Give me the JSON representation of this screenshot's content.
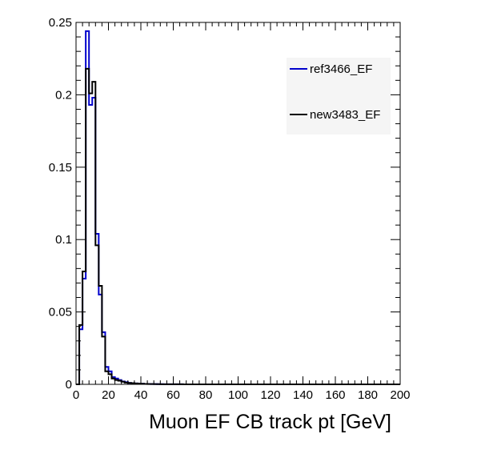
{
  "chart_data": {
    "type": "line",
    "title": "",
    "xlabel": "Muon EF CB track pt [GeV]",
    "ylabel": "",
    "xlim": [
      0,
      200
    ],
    "ylim": [
      0,
      0.25
    ],
    "grid": false,
    "legend_position": "top-right",
    "x_ticks": [
      "0",
      "20",
      "40",
      "60",
      "80",
      "100",
      "120",
      "140",
      "160",
      "180",
      "200"
    ],
    "y_ticks": [
      "0",
      "0.05",
      "0.1",
      "0.15",
      "0.2",
      "0.25"
    ],
    "bin_width": 2,
    "series": [
      {
        "name": "ref3466_EF",
        "color": "#0000cc",
        "values": [
          0,
          0.038,
          0.073,
          0.244,
          0.193,
          0.198,
          0.104,
          0.062,
          0.036,
          0.012,
          0.009,
          0.005,
          0.004,
          0.003,
          0.002,
          0.0015,
          0.001,
          0.0008,
          0.0006,
          0.0005,
          0.0004,
          0.0003,
          0.0003,
          0.0002,
          0.0002,
          0.00015,
          0.00012,
          0.0001,
          0.0001,
          8e-05,
          7e-05,
          6e-05,
          5e-05
        ]
      },
      {
        "name": "new3483_EF",
        "color": "#000000",
        "values": [
          0,
          0.041,
          0.078,
          0.218,
          0.201,
          0.209,
          0.096,
          0.068,
          0.033,
          0.009,
          0.007,
          0.004,
          0.003,
          0.0025,
          0.0018,
          0.0012,
          0.001,
          0.0008,
          0.0006,
          0.0005,
          0.0004,
          0.0003,
          0.0002,
          0.0002,
          0.00015,
          0.00012,
          0.0001,
          0.0001,
          8e-05,
          7e-05,
          6e-05,
          5e-05,
          4e-05
        ]
      }
    ]
  }
}
